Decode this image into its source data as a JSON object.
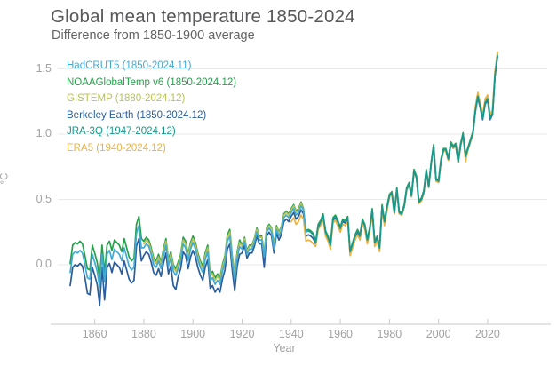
{
  "colors": {
    "title_text": "#58585b",
    "subtitle_text": "#636366",
    "axis_text": "#a2a2a2",
    "gridline": "#eaeaea",
    "axis_line": "#c9c9c9"
  },
  "chart_data": {
    "type": "line",
    "title": "Global mean temperature 1850-2024",
    "subtitle": "Difference from 1850-1900 average",
    "xlabel": "Year",
    "ylabel": "°C",
    "xlim": [
      1850,
      2024
    ],
    "ylim": [
      -0.46,
      1.65
    ],
    "xticks": [
      1860,
      1880,
      1900,
      1920,
      1940,
      1960,
      1980,
      2000,
      2020
    ],
    "yticks": [
      0.0,
      0.5,
      1.0,
      1.5
    ],
    "ytick_labels": [
      "0.0",
      "0.5",
      "1.0",
      "1.5"
    ],
    "grid": "horizontal",
    "legend_position": "top-left",
    "draw_order": [
      1,
      2,
      3,
      5,
      0,
      4
    ],
    "series": [
      {
        "name": "hadcrut5",
        "label": "HadCRUT5 (1850-2024.11)",
        "color": "#41aad5",
        "start_year": 1850,
        "values": [
          -0.06,
          0.08,
          0.1,
          0.09,
          0.11,
          0.09,
          0.0,
          -0.1,
          -0.11,
          0.08,
          0.02,
          -0.05,
          -0.17,
          0.08,
          -0.13,
          0.08,
          0.11,
          0.04,
          0.12,
          0.1,
          0.08,
          0.03,
          0.13,
          0.06,
          -0.01,
          -0.04,
          -0.02,
          0.24,
          0.3,
          0.13,
          0.13,
          0.16,
          0.14,
          0.08,
          0.0,
          -0.02,
          0.03,
          -0.03,
          0.07,
          0.15,
          -0.01,
          0.05,
          -0.05,
          -0.08,
          -0.03,
          0.03,
          0.16,
          0.13,
          0.03,
          0.12,
          0.17,
          0.12,
          0.04,
          -0.02,
          -0.06,
          0.04,
          0.1,
          -0.12,
          -0.1,
          -0.15,
          -0.12,
          -0.15,
          -0.05,
          0.02,
          0.18,
          0.22,
          0.02,
          -0.12,
          0.05,
          0.14,
          0.12,
          0.18,
          0.08,
          0.12,
          0.12,
          0.17,
          0.25,
          0.19,
          0.19,
          0.06,
          0.25,
          0.28,
          0.25,
          0.12,
          0.27,
          0.22,
          0.26,
          0.36,
          0.38,
          0.36,
          0.4,
          0.43,
          0.38,
          0.4,
          0.45,
          0.42,
          0.25,
          0.26,
          0.25,
          0.23,
          0.17,
          0.3,
          0.33,
          0.38,
          0.25,
          0.21,
          0.15,
          0.35,
          0.37,
          0.33,
          0.28,
          0.34,
          0.33,
          0.36,
          0.1,
          0.16,
          0.22,
          0.26,
          0.22,
          0.34,
          0.3,
          0.19,
          0.28,
          0.42,
          0.17,
          0.21,
          0.13,
          0.45,
          0.33,
          0.44,
          0.53,
          0.55,
          0.4,
          0.58,
          0.4,
          0.39,
          0.45,
          0.58,
          0.62,
          0.53,
          0.72,
          0.67,
          0.48,
          0.5,
          0.56,
          0.72,
          0.6,
          0.78,
          0.91,
          0.65,
          0.64,
          0.8,
          0.88,
          0.88,
          0.81,
          0.93,
          0.9,
          0.92,
          0.79,
          0.92,
          1.0,
          0.83,
          0.89,
          0.95,
          1.01,
          1.18,
          1.29,
          1.21,
          1.12,
          1.24,
          1.27,
          1.12,
          1.16,
          1.45,
          1.6
        ]
      },
      {
        "name": "noaaglobaltemp-v6",
        "label": "NOAAGlobalTemp v6 (1850-2024.12)",
        "color": "#23a14a",
        "start_year": 1850,
        "values": [
          0.01,
          0.15,
          0.17,
          0.16,
          0.18,
          0.16,
          0.07,
          -0.03,
          -0.04,
          0.15,
          0.09,
          0.02,
          -0.1,
          0.15,
          -0.06,
          0.15,
          0.18,
          0.11,
          0.19,
          0.17,
          0.15,
          0.1,
          0.2,
          0.13,
          0.06,
          0.03,
          0.05,
          0.31,
          0.37,
          0.2,
          0.18,
          0.21,
          0.19,
          0.13,
          0.05,
          0.03,
          0.08,
          0.02,
          0.12,
          0.2,
          0.04,
          0.1,
          0.0,
          -0.03,
          0.02,
          0.08,
          0.21,
          0.18,
          0.08,
          0.17,
          0.22,
          0.17,
          0.09,
          0.03,
          -0.01,
          0.09,
          0.15,
          -0.07,
          -0.05,
          -0.1,
          -0.07,
          -0.1,
          0.0,
          0.07,
          0.23,
          0.27,
          0.07,
          -0.07,
          0.1,
          0.19,
          0.15,
          0.21,
          0.11,
          0.15,
          0.15,
          0.2,
          0.28,
          0.22,
          0.22,
          0.09,
          0.28,
          0.31,
          0.28,
          0.15,
          0.3,
          0.25,
          0.29,
          0.39,
          0.41,
          0.39,
          0.43,
          0.46,
          0.41,
          0.43,
          0.48,
          0.43,
          0.26,
          0.27,
          0.26,
          0.24,
          0.18,
          0.31,
          0.34,
          0.39,
          0.26,
          0.22,
          0.16,
          0.36,
          0.38,
          0.34,
          0.29,
          0.35,
          0.34,
          0.37,
          0.11,
          0.17,
          0.23,
          0.27,
          0.23,
          0.35,
          0.31,
          0.2,
          0.29,
          0.43,
          0.18,
          0.22,
          0.14,
          0.46,
          0.34,
          0.45,
          0.54,
          0.56,
          0.41,
          0.59,
          0.41,
          0.4,
          0.46,
          0.59,
          0.63,
          0.54,
          0.73,
          0.68,
          0.49,
          0.51,
          0.57,
          0.73,
          0.61,
          0.79,
          0.92,
          0.66,
          0.65,
          0.81,
          0.89,
          0.89,
          0.82,
          0.94,
          0.91,
          0.93,
          0.8,
          0.93,
          1.01,
          0.84,
          0.9,
          0.96,
          1.02,
          1.19,
          1.3,
          1.22,
          1.13,
          1.25,
          1.28,
          1.13,
          1.17,
          1.46,
          1.61
        ]
      },
      {
        "name": "gistemp",
        "label": "GISTEMP (1880-2024.12)",
        "color": "#b9c255",
        "start_year": 1880,
        "values": [
          0.16,
          0.19,
          0.17,
          0.11,
          0.03,
          0.01,
          0.06,
          0.0,
          0.1,
          0.18,
          0.02,
          0.08,
          -0.02,
          -0.05,
          0.0,
          0.06,
          0.19,
          0.16,
          0.06,
          0.15,
          0.2,
          0.15,
          0.07,
          0.01,
          -0.03,
          0.07,
          0.13,
          -0.09,
          -0.07,
          -0.12,
          -0.09,
          -0.12,
          -0.02,
          0.05,
          0.21,
          0.25,
          0.05,
          -0.09,
          0.08,
          0.17,
          0.14,
          0.2,
          0.1,
          0.14,
          0.14,
          0.19,
          0.27,
          0.21,
          0.21,
          0.08,
          0.27,
          0.3,
          0.27,
          0.14,
          0.29,
          0.24,
          0.28,
          0.38,
          0.4,
          0.38,
          0.42,
          0.45,
          0.4,
          0.42,
          0.47,
          0.42,
          0.25,
          0.26,
          0.25,
          0.23,
          0.17,
          0.3,
          0.33,
          0.38,
          0.25,
          0.21,
          0.15,
          0.35,
          0.37,
          0.33,
          0.28,
          0.34,
          0.33,
          0.36,
          0.1,
          0.16,
          0.22,
          0.26,
          0.22,
          0.34,
          0.3,
          0.19,
          0.28,
          0.42,
          0.17,
          0.21,
          0.13,
          0.45,
          0.33,
          0.44,
          0.53,
          0.55,
          0.4,
          0.58,
          0.4,
          0.39,
          0.45,
          0.58,
          0.62,
          0.53,
          0.72,
          0.67,
          0.48,
          0.5,
          0.56,
          0.72,
          0.6,
          0.78,
          0.91,
          0.65,
          0.64,
          0.8,
          0.88,
          0.88,
          0.81,
          0.93,
          0.9,
          0.92,
          0.79,
          0.92,
          1.0,
          0.83,
          0.89,
          0.95,
          1.01,
          1.2,
          1.31,
          1.23,
          1.14,
          1.26,
          1.29,
          1.14,
          1.18,
          1.47,
          1.62
        ]
      },
      {
        "name": "berkeley-earth",
        "label": "Berkeley Earth (1850-2024.12)",
        "color": "#2a5d9c",
        "start_year": 1850,
        "values": [
          -0.16,
          -0.02,
          0.0,
          -0.01,
          0.01,
          -0.01,
          -0.1,
          -0.22,
          -0.23,
          -0.02,
          -0.08,
          -0.15,
          -0.31,
          -0.02,
          -0.27,
          -0.02,
          0.01,
          -0.06,
          0.02,
          0.0,
          -0.02,
          -0.07,
          0.03,
          -0.04,
          -0.11,
          -0.14,
          -0.12,
          0.14,
          0.2,
          0.03,
          0.07,
          0.1,
          0.08,
          0.02,
          -0.06,
          -0.08,
          -0.03,
          -0.09,
          0.01,
          0.09,
          -0.07,
          -0.01,
          -0.16,
          -0.19,
          -0.09,
          -0.03,
          0.1,
          0.07,
          -0.03,
          0.06,
          0.11,
          0.06,
          -0.02,
          -0.08,
          -0.12,
          -0.02,
          0.04,
          -0.18,
          -0.16,
          -0.21,
          -0.18,
          -0.21,
          -0.11,
          -0.04,
          0.12,
          0.16,
          -0.04,
          -0.2,
          -0.01,
          0.08,
          0.09,
          0.15,
          0.05,
          0.09,
          0.09,
          0.14,
          0.22,
          0.16,
          0.16,
          -0.02,
          0.22,
          0.25,
          0.22,
          0.09,
          0.24,
          0.19,
          0.23,
          0.33,
          0.35,
          0.33,
          0.37,
          0.4,
          0.35,
          0.37,
          0.42,
          0.39,
          0.22,
          0.23,
          0.22,
          0.2,
          0.16,
          0.29,
          0.32,
          0.37,
          0.24,
          0.2,
          0.14,
          0.34,
          0.36,
          0.32,
          0.27,
          0.33,
          0.32,
          0.35,
          0.09,
          0.15,
          0.21,
          0.25,
          0.21,
          0.33,
          0.29,
          0.18,
          0.27,
          0.41,
          0.16,
          0.2,
          0.12,
          0.44,
          0.32,
          0.43,
          0.52,
          0.54,
          0.39,
          0.57,
          0.39,
          0.38,
          0.44,
          0.57,
          0.61,
          0.52,
          0.71,
          0.66,
          0.47,
          0.49,
          0.55,
          0.71,
          0.59,
          0.77,
          0.9,
          0.64,
          0.63,
          0.79,
          0.87,
          0.87,
          0.8,
          0.92,
          0.89,
          0.91,
          0.78,
          0.91,
          0.99,
          0.82,
          0.88,
          0.94,
          1.0,
          1.17,
          1.28,
          1.2,
          1.11,
          1.23,
          1.26,
          1.11,
          1.15,
          1.44,
          1.59
        ]
      },
      {
        "name": "jra-3q",
        "label": "JRA-3Q (1947-2024.12)",
        "color": "#17998a",
        "start_year": 1947,
        "values": [
          0.26,
          0.25,
          0.23,
          0.17,
          0.3,
          0.33,
          0.38,
          0.25,
          0.21,
          0.15,
          0.35,
          0.37,
          0.33,
          0.28,
          0.34,
          0.33,
          0.36,
          0.1,
          0.16,
          0.22,
          0.26,
          0.22,
          0.34,
          0.3,
          0.19,
          0.28,
          0.42,
          0.17,
          0.21,
          0.13,
          0.45,
          0.33,
          0.44,
          0.53,
          0.55,
          0.4,
          0.58,
          0.4,
          0.39,
          0.45,
          0.58,
          0.62,
          0.53,
          0.72,
          0.67,
          0.48,
          0.5,
          0.56,
          0.72,
          0.6,
          0.78,
          0.91,
          0.65,
          0.64,
          0.8,
          0.88,
          0.88,
          0.81,
          0.93,
          0.9,
          0.92,
          0.79,
          0.92,
          1.0,
          0.83,
          0.89,
          0.95,
          1.01,
          1.18,
          1.29,
          1.21,
          1.12,
          1.24,
          1.27,
          1.12,
          1.16,
          1.45,
          1.6
        ]
      },
      {
        "name": "era5",
        "label": "ERA5 (1940-2024.12)",
        "color": "#ecb23f",
        "start_year": 1940,
        "values": [
          0.33,
          0.36,
          0.31,
          0.33,
          0.38,
          0.35,
          0.18,
          0.19,
          0.18,
          0.16,
          0.14,
          0.27,
          0.3,
          0.35,
          0.22,
          0.18,
          0.12,
          0.32,
          0.34,
          0.3,
          0.25,
          0.31,
          0.3,
          0.33,
          0.07,
          0.13,
          0.19,
          0.23,
          0.19,
          0.31,
          0.27,
          0.16,
          0.25,
          0.39,
          0.14,
          0.18,
          0.1,
          0.42,
          0.3,
          0.41,
          0.52,
          0.54,
          0.39,
          0.57,
          0.39,
          0.38,
          0.44,
          0.57,
          0.61,
          0.52,
          0.71,
          0.66,
          0.47,
          0.49,
          0.55,
          0.71,
          0.59,
          0.77,
          0.9,
          0.64,
          0.63,
          0.79,
          0.87,
          0.87,
          0.8,
          0.92,
          0.89,
          0.91,
          0.78,
          0.91,
          0.99,
          0.79,
          0.88,
          0.94,
          1.0,
          1.21,
          1.32,
          1.24,
          1.15,
          1.27,
          1.3,
          1.15,
          1.19,
          1.48,
          1.63
        ]
      }
    ]
  }
}
